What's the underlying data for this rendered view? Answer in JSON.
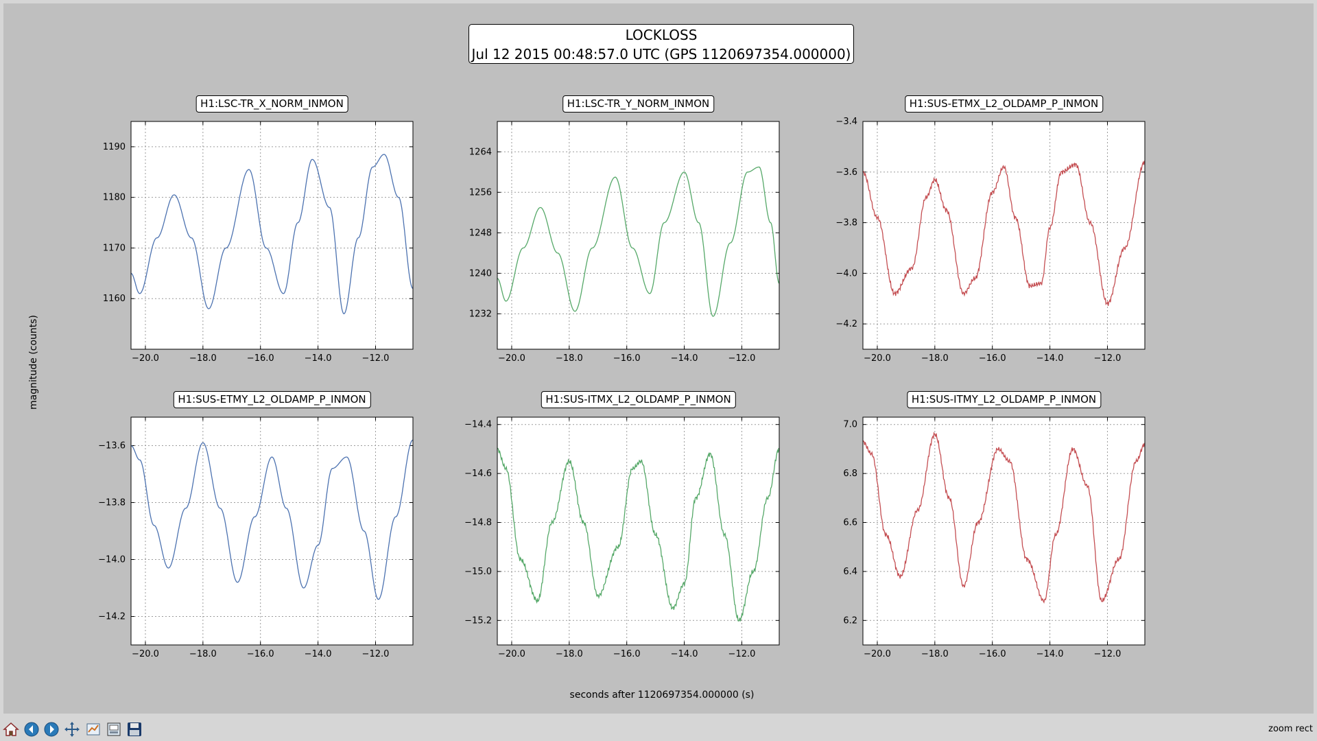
{
  "figure_title": {
    "line1": "LOCKLOSS",
    "line2": "Jul 12 2015 00:48:57.0 UTC (GPS 1120697354.000000)"
  },
  "ylabel": "magnitude (counts)",
  "xlabel": "seconds after 1120697354.000000 (s)",
  "status": "zoom rect",
  "toolbar": [
    {
      "name": "home-icon",
      "title": "Home"
    },
    {
      "name": "back-icon",
      "title": "Back"
    },
    {
      "name": "forward-icon",
      "title": "Forward"
    },
    {
      "name": "pan-icon",
      "title": "Pan"
    },
    {
      "name": "subplots-icon",
      "title": "Configure subplots"
    },
    {
      "name": "edit-icon",
      "title": "Edit"
    },
    {
      "name": "save-icon",
      "title": "Save"
    }
  ],
  "chart_data": [
    {
      "type": "line",
      "title": "H1:LSC-TR_X_NORM_INMON",
      "color": "#4c72b0",
      "xlim": [
        -20.5,
        -10.7
      ],
      "ylim": [
        1150,
        1195
      ],
      "xticks": [
        -20,
        -18,
        -16,
        -14,
        -12
      ],
      "xtick_labels": [
        "−20.0",
        "−18.0",
        "−16.0",
        "−14.0",
        "−12.0"
      ],
      "yticks": [
        1160,
        1170,
        1180,
        1190
      ],
      "ytick_labels": [
        "1160",
        "1170",
        "1180",
        "1190"
      ],
      "grid": true,
      "series": [
        {
          "x": [
            -20.5,
            -20.2,
            -19.6,
            -19.0,
            -18.4,
            -17.8,
            -17.2,
            -16.4,
            -15.8,
            -15.2,
            -14.7,
            -14.2,
            -13.6,
            -13.1,
            -12.6,
            -12.1,
            -11.7,
            -11.2,
            -10.7
          ],
          "values": [
            1165,
            1161,
            1172,
            1180.5,
            1172,
            1158,
            1170,
            1185.5,
            1170,
            1161,
            1175,
            1187.5,
            1178,
            1157,
            1172,
            1186,
            1188.5,
            1180,
            1162
          ]
        }
      ]
    },
    {
      "type": "line",
      "title": "H1:LSC-TR_Y_NORM_INMON",
      "color": "#55a868",
      "xlim": [
        -20.5,
        -10.7
      ],
      "ylim": [
        1225,
        1270
      ],
      "xticks": [
        -20,
        -18,
        -16,
        -14,
        -12
      ],
      "xtick_labels": [
        "−20.0",
        "−18.0",
        "−16.0",
        "−14.0",
        "−12.0"
      ],
      "yticks": [
        1232,
        1240,
        1248,
        1256,
        1264
      ],
      "ytick_labels": [
        "1232",
        "1240",
        "1248",
        "1256",
        "1264"
      ],
      "grid": true,
      "series": [
        {
          "x": [
            -20.5,
            -20.2,
            -19.6,
            -19.0,
            -18.4,
            -17.8,
            -17.2,
            -16.4,
            -15.8,
            -15.2,
            -14.7,
            -14.0,
            -13.5,
            -13.0,
            -12.4,
            -11.8,
            -11.4,
            -11.0,
            -10.7
          ],
          "values": [
            1239,
            1234.5,
            1245,
            1253,
            1244,
            1232.5,
            1245,
            1259,
            1245,
            1236,
            1250,
            1260,
            1250,
            1231.5,
            1246,
            1260,
            1261,
            1250,
            1238
          ]
        }
      ]
    },
    {
      "type": "line",
      "title": "H1:SUS-ETMX_L2_OLDAMP_P_INMON",
      "color": "#c44e52",
      "xlim": [
        -20.5,
        -10.7
      ],
      "ylim": [
        -4.3,
        -3.4
      ],
      "xticks": [
        -20,
        -18,
        -16,
        -14,
        -12
      ],
      "xtick_labels": [
        "−20.0",
        "−18.0",
        "−16.0",
        "−14.0",
        "−12.0"
      ],
      "yticks": [
        -4.2,
        -4.0,
        -3.8,
        -3.6,
        -3.4
      ],
      "ytick_labels": [
        "−4.2",
        "−4.0",
        "−3.8",
        "−3.6",
        "−3.4"
      ],
      "grid": true,
      "series": [
        {
          "x": [
            -20.5,
            -20.0,
            -19.4,
            -18.8,
            -18.3,
            -18.0,
            -17.6,
            -17.0,
            -16.6,
            -16.0,
            -15.6,
            -15.2,
            -14.7,
            -14.3,
            -14.0,
            -13.6,
            -13.1,
            -12.6,
            -12.0,
            -11.4,
            -10.7
          ],
          "values": [
            -3.6,
            -3.78,
            -4.08,
            -3.98,
            -3.7,
            -3.63,
            -3.75,
            -4.08,
            -4.02,
            -3.68,
            -3.58,
            -3.78,
            -4.05,
            -4.04,
            -3.82,
            -3.6,
            -3.57,
            -3.8,
            -4.12,
            -3.9,
            -3.56
          ]
        }
      ]
    },
    {
      "type": "line",
      "title": "H1:SUS-ETMY_L2_OLDAMP_P_INMON",
      "color": "#4c72b0",
      "xlim": [
        -20.5,
        -10.7
      ],
      "ylim": [
        -14.3,
        -13.5
      ],
      "xticks": [
        -20,
        -18,
        -16,
        -14,
        -12
      ],
      "xtick_labels": [
        "−20.0",
        "−18.0",
        "−16.0",
        "−14.0",
        "−12.0"
      ],
      "yticks": [
        -14.2,
        -14.0,
        -13.8,
        -13.6
      ],
      "ytick_labels": [
        "−14.2",
        "−14.0",
        "−13.8",
        "−13.6"
      ],
      "grid": true,
      "series": [
        {
          "x": [
            -20.5,
            -20.2,
            -19.7,
            -19.2,
            -18.6,
            -18.0,
            -17.4,
            -16.8,
            -16.2,
            -15.6,
            -15.1,
            -14.5,
            -14.0,
            -13.5,
            -13.0,
            -12.4,
            -11.9,
            -11.3,
            -10.7
          ],
          "values": [
            -13.6,
            -13.65,
            -13.88,
            -14.03,
            -13.82,
            -13.59,
            -13.82,
            -14.08,
            -13.85,
            -13.64,
            -13.82,
            -14.1,
            -13.95,
            -13.68,
            -13.64,
            -13.9,
            -14.14,
            -13.85,
            -13.58
          ]
        }
      ]
    },
    {
      "type": "line",
      "title": "H1:SUS-ITMX_L2_OLDAMP_P_INMON",
      "color": "#55a868",
      "xlim": [
        -20.5,
        -10.7
      ],
      "ylim": [
        -15.3,
        -14.37
      ],
      "xticks": [
        -20,
        -18,
        -16,
        -14,
        -12
      ],
      "xtick_labels": [
        "−20.0",
        "−18.0",
        "−16.0",
        "−14.0",
        "−12.0"
      ],
      "yticks": [
        -15.2,
        -15.0,
        -14.8,
        -14.6,
        -14.4
      ],
      "ytick_labels": [
        "−15.2",
        "−15.0",
        "−14.8",
        "−14.6",
        "−14.4"
      ],
      "grid": true,
      "series": [
        {
          "x": [
            -20.5,
            -20.2,
            -19.7,
            -19.1,
            -18.6,
            -18.0,
            -17.5,
            -17.0,
            -16.3,
            -15.8,
            -15.5,
            -15.0,
            -14.4,
            -14.0,
            -13.6,
            -13.1,
            -12.6,
            -12.1,
            -11.6,
            -11.1,
            -10.7
          ],
          "values": [
            -14.5,
            -14.58,
            -14.95,
            -15.12,
            -14.8,
            -14.55,
            -14.8,
            -15.1,
            -14.9,
            -14.58,
            -14.55,
            -14.85,
            -15.15,
            -15.05,
            -14.7,
            -14.52,
            -14.85,
            -15.2,
            -15.0,
            -14.7,
            -14.5
          ]
        }
      ]
    },
    {
      "type": "line",
      "title": "H1:SUS-ITMY_L2_OLDAMP_P_INMON",
      "color": "#c44e52",
      "xlim": [
        -20.5,
        -10.7
      ],
      "ylim": [
        6.1,
        7.03
      ],
      "xticks": [
        -20,
        -18,
        -16,
        -14,
        -12
      ],
      "xtick_labels": [
        "−20.0",
        "−18.0",
        "−16.0",
        "−14.0",
        "−12.0"
      ],
      "yticks": [
        6.2,
        6.4,
        6.6,
        6.8,
        7.0
      ],
      "ytick_labels": [
        "6.2",
        "6.4",
        "6.6",
        "6.8",
        "7.0"
      ],
      "grid": true,
      "series": [
        {
          "x": [
            -20.5,
            -20.2,
            -19.7,
            -19.2,
            -18.6,
            -18.0,
            -17.5,
            -17.0,
            -16.5,
            -15.8,
            -15.4,
            -14.8,
            -14.2,
            -13.8,
            -13.2,
            -12.7,
            -12.2,
            -11.6,
            -11.0,
            -10.7
          ],
          "values": [
            6.93,
            6.88,
            6.55,
            6.38,
            6.65,
            6.96,
            6.7,
            6.34,
            6.6,
            6.9,
            6.85,
            6.45,
            6.28,
            6.55,
            6.9,
            6.75,
            6.28,
            6.45,
            6.85,
            6.92
          ]
        }
      ]
    }
  ]
}
